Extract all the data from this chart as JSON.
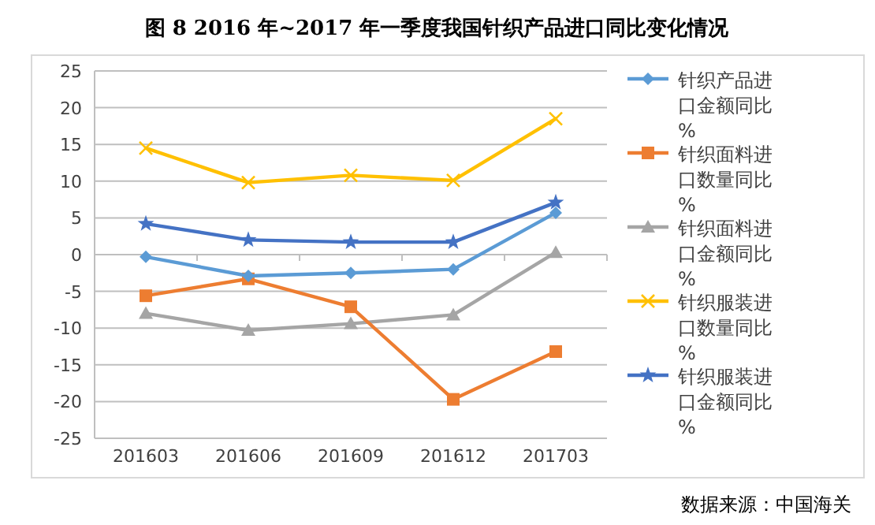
{
  "chart_data": {
    "type": "line",
    "title": "图 8 2016 年~2017 年一季度我国针织产品进口同比变化情况",
    "categories": [
      "201603",
      "201606",
      "201609",
      "201612",
      "201703"
    ],
    "series": [
      {
        "name": "针织产品进口金额同比%",
        "color": "#5b9bd5",
        "marker": "diamond",
        "values": [
          -0.3,
          -2.9,
          -2.5,
          -2.0,
          5.7
        ]
      },
      {
        "name": "针织面料进口数量同比%",
        "color": "#ed7d31",
        "marker": "square",
        "values": [
          -5.6,
          -3.3,
          -7.1,
          -19.7,
          -13.2
        ]
      },
      {
        "name": "针织面料进口金额同比%",
        "color": "#a5a5a5",
        "marker": "triangle",
        "values": [
          -8.0,
          -10.3,
          -9.4,
          -8.2,
          0.3
        ]
      },
      {
        "name": "针织服装进口数量同比%",
        "color": "#ffc000",
        "marker": "cross",
        "values": [
          14.5,
          9.8,
          10.8,
          10.1,
          18.5
        ]
      },
      {
        "name": "针织服装进口金额同比%",
        "color": "#4472c4",
        "marker": "star",
        "values": [
          4.2,
          2.0,
          1.7,
          1.7,
          7.1
        ]
      }
    ],
    "ylim": [
      -25,
      25
    ],
    "yticks": [
      -25,
      -20,
      -15,
      -10,
      -5,
      0,
      5,
      10,
      15,
      20,
      25
    ],
    "grid": "y",
    "legend": "right",
    "annotations": [
      "数据来源：中国海关"
    ]
  }
}
